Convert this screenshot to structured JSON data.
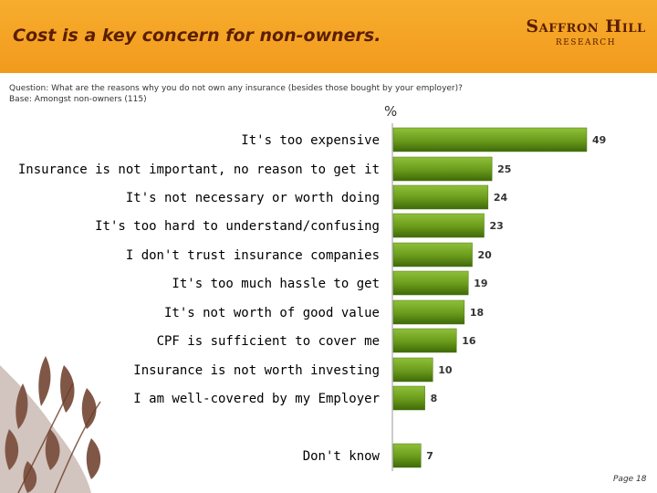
{
  "header": {
    "title": "Cost is a key concern for non-owners.",
    "brand_name": "Saffron Hill",
    "brand_sub": "research"
  },
  "question": "Question: What are the reasons why you do not own any insurance (besides those bought by your employer)?",
  "base": "Base:  Amongst non-owners (115)",
  "footer": {
    "page": "Page 18"
  },
  "colors": {
    "header": "#f29a1c",
    "bar": "#6a9a1a",
    "bar_dark": "#3f6a0a",
    "title_text": "#5a1e00"
  },
  "chart_data": {
    "type": "bar",
    "orientation": "horizontal",
    "unit_label": "%",
    "categories": [
      "It's too expensive",
      "Insurance is not important, no reason to get it",
      "It's not necessary or worth doing",
      "It's too hard to understand/confusing",
      "I don't trust insurance companies",
      "It's too much hassle to get",
      "It's not worth of good value",
      "CPF is sufficient to cover me",
      "Insurance is not worth investing",
      "I am well-covered by my Employer",
      "Don't know"
    ],
    "values": [
      49,
      25,
      24,
      23,
      20,
      19,
      18,
      16,
      10,
      8,
      7
    ],
    "xlim": [
      0,
      49
    ],
    "grid": false
  }
}
